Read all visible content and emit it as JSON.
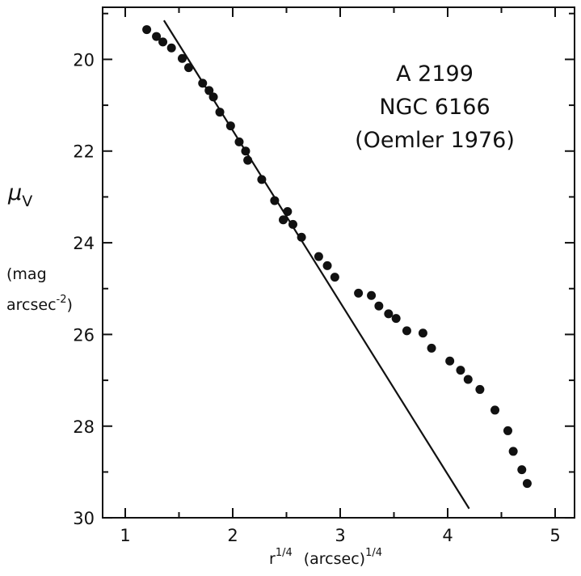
{
  "chart_data": {
    "type": "scatter",
    "title": "",
    "annotations": [
      "A 2199",
      "NGC 6166",
      "(Oemler 1976)"
    ],
    "xlabel": {
      "base": "r",
      "sup": "1/4",
      "unit": "(arcsec)",
      "unit_sup": "1/4"
    },
    "ylabel": {
      "symbol": "μ",
      "subscript": "V",
      "unit_line1": "(mag",
      "unit_line2": "arcsec",
      "unit_line2_sup": "-2",
      "unit_line2_close": ")"
    },
    "xlim": [
      0.85,
      5.2
    ],
    "ylim": [
      30,
      19
    ],
    "y_inverted": true,
    "x_ticks": [
      "1",
      "2",
      "3",
      "4",
      "5"
    ],
    "y_ticks": [
      "20",
      "22",
      "24",
      "26",
      "28",
      "30"
    ],
    "grid": false,
    "series": [
      {
        "type": "scatter",
        "x": [
          1.2,
          1.29,
          1.35,
          1.43,
          1.53,
          1.59,
          1.72,
          1.78,
          1.82,
          1.88,
          1.98,
          2.06,
          2.12,
          2.14,
          2.27,
          2.39,
          2.47,
          2.51,
          2.56,
          2.64,
          2.8,
          2.88,
          2.95,
          3.17,
          3.29,
          3.36,
          3.45,
          3.52,
          3.62,
          3.77,
          3.85,
          4.02,
          4.12,
          4.19,
          4.3,
          4.44,
          4.56,
          4.61,
          4.69,
          4.74
        ],
        "y": [
          19.35,
          19.5,
          19.62,
          19.75,
          19.98,
          20.18,
          20.52,
          20.68,
          20.82,
          21.15,
          21.45,
          21.8,
          22.0,
          22.2,
          22.62,
          23.08,
          23.5,
          23.32,
          23.6,
          23.88,
          24.3,
          24.5,
          24.75,
          25.1,
          25.15,
          25.38,
          25.55,
          25.65,
          25.92,
          25.97,
          26.3,
          26.58,
          26.78,
          26.98,
          27.2,
          27.65,
          28.1,
          28.55,
          28.95,
          29.25
        ]
      },
      {
        "type": "line",
        "x": [
          1.36,
          4.2
        ],
        "y": [
          19.15,
          29.8
        ]
      }
    ]
  }
}
